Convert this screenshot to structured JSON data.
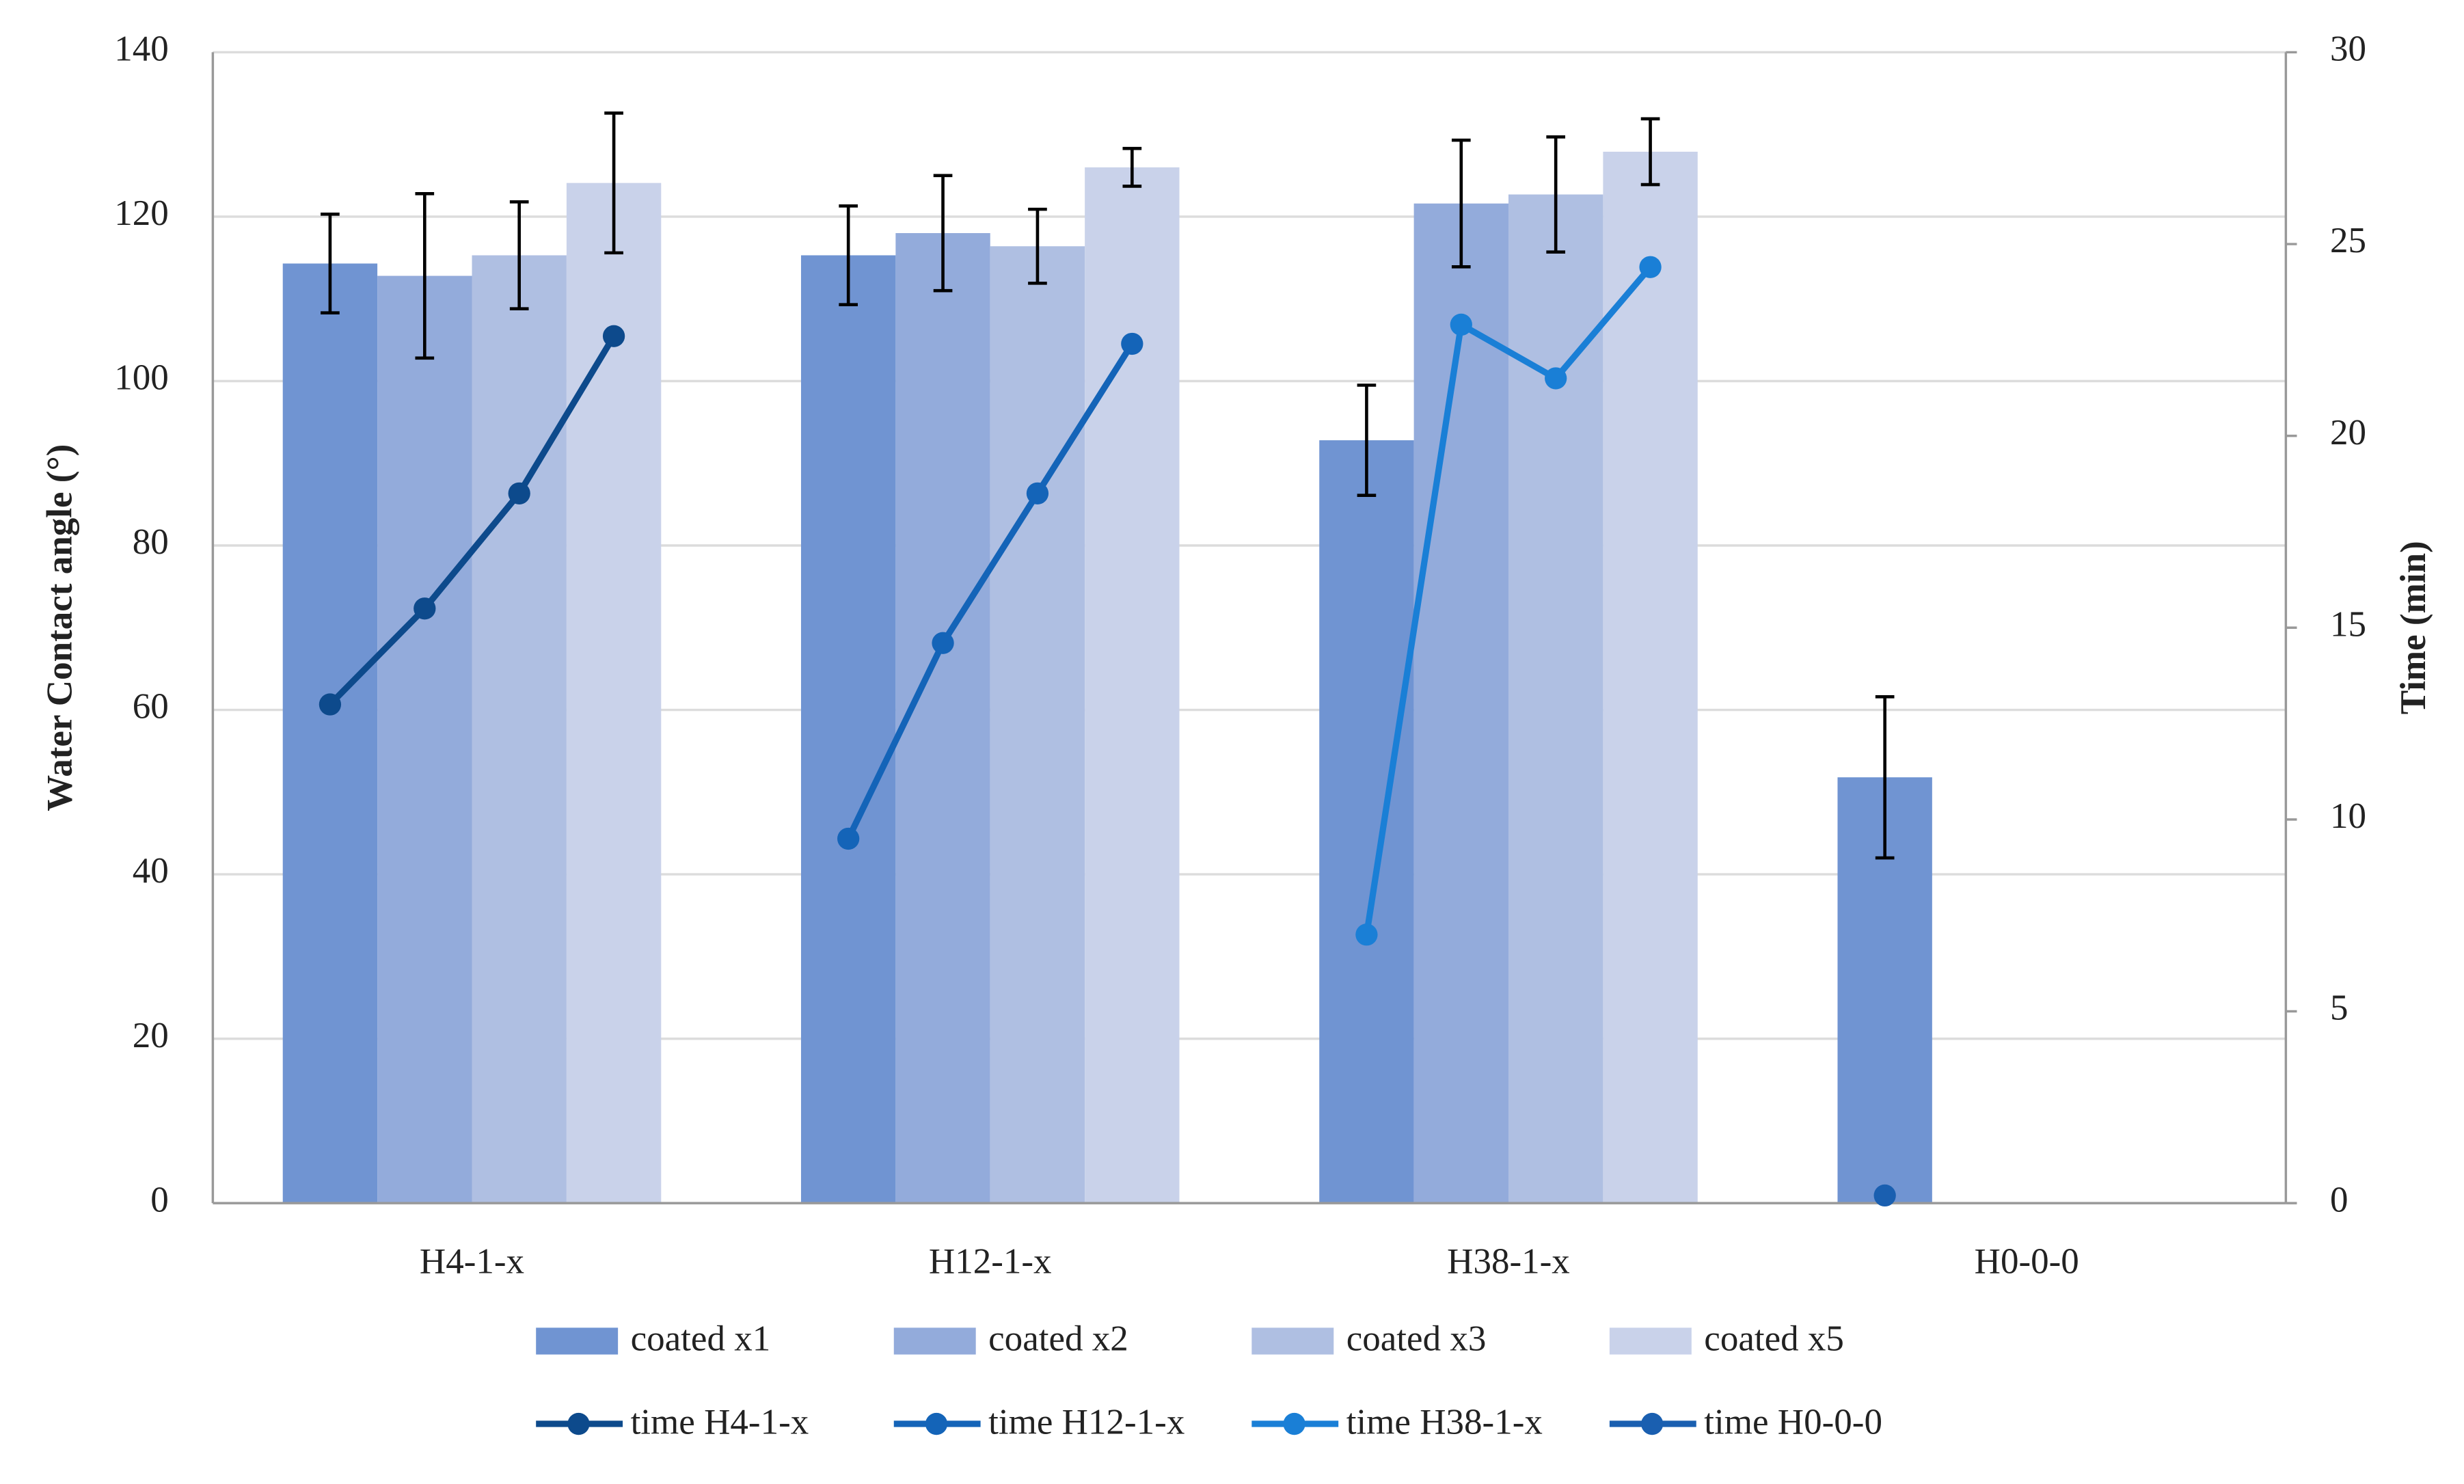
{
  "chart_data": {
    "type": "bar_line",
    "y_label": "Water Contact angle (°)",
    "y2_label": "Time (min)",
    "categories": [
      "H4-1-x",
      "H12-1-x",
      "H38-1-x",
      "H0-0-0"
    ],
    "ylim": [
      0,
      140
    ],
    "yticks": [
      0,
      20,
      40,
      60,
      80,
      100,
      120,
      140
    ],
    "y2lim": [
      0,
      30
    ],
    "y2ticks": [
      0,
      5,
      10,
      15,
      20,
      25,
      30
    ],
    "grid": true,
    "series": [
      {
        "name": "coated x1",
        "color": "#7094d2",
        "values": [
          114.3,
          115.3,
          92.8,
          51.8
        ],
        "errors": [
          6,
          6,
          6.7,
          9.8
        ]
      },
      {
        "name": "coated x2",
        "color": "#93abdb",
        "values": [
          112.8,
          118,
          121.6,
          null
        ],
        "errors": [
          10,
          7,
          7.7,
          null
        ]
      },
      {
        "name": "coated x3",
        "color": "#afbfe2",
        "values": [
          115.3,
          116.4,
          122.7,
          null
        ],
        "errors": [
          6.5,
          4.5,
          7,
          null
        ]
      },
      {
        "name": "coated x5",
        "color": "#c9d2ea",
        "values": [
          124.1,
          126,
          127.9,
          null
        ],
        "errors": [
          8.5,
          2.3,
          4,
          null
        ]
      }
    ],
    "line_series": [
      {
        "name": "time H4-1-x",
        "color": "#0d4a8c",
        "axis": "y2",
        "values": [
          13.0,
          15.5,
          18.5,
          22.6
        ]
      },
      {
        "name": "time H12-1-x",
        "color": "#1464b8",
        "axis": "y2",
        "values": [
          9.5,
          14.6,
          18.5,
          22.4
        ]
      },
      {
        "name": "time H38-1-x",
        "color": "#1a7fd6",
        "axis": "y2",
        "values": [
          7.0,
          22.9,
          21.5,
          24.4
        ]
      },
      {
        "name": "time H0-0-0",
        "color": "#1a5fb0",
        "axis": "y2",
        "values": [
          0.2,
          null,
          null,
          null
        ]
      }
    ]
  }
}
